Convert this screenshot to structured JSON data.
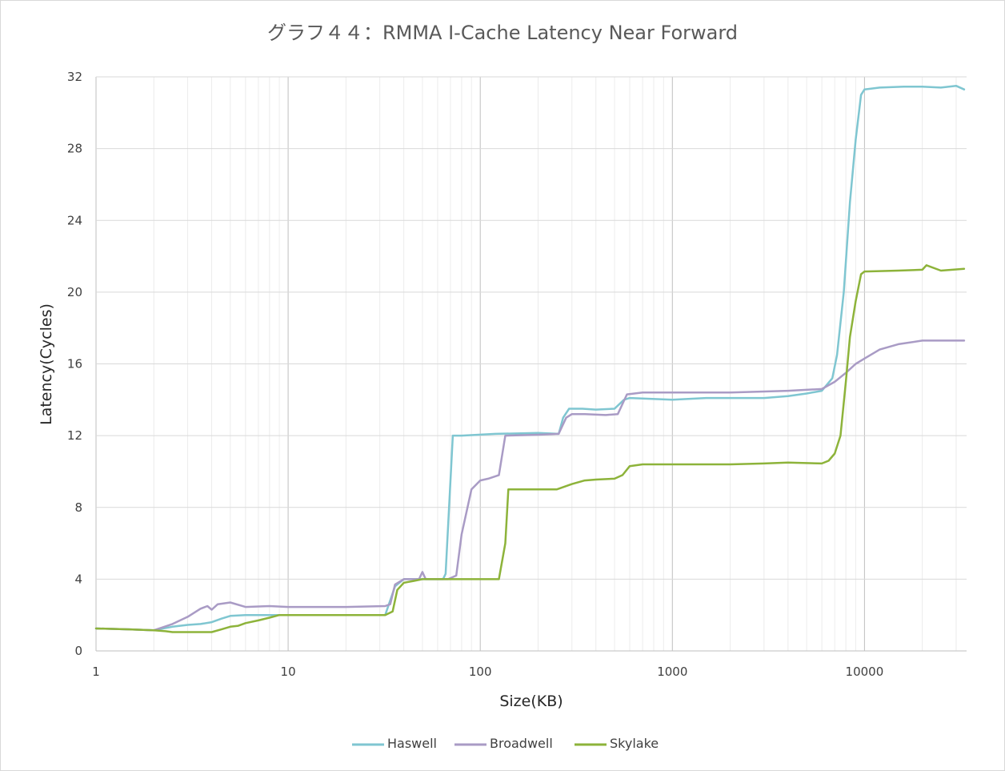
{
  "chart_data": {
    "type": "line",
    "title": "グラフ４４：RMMA I-Cache Latency Near Forward",
    "xlabel": "Size(KB)",
    "ylabel": "Latency(Cycles)",
    "x_scale": "log",
    "xlim": [
      1,
      34000
    ],
    "ylim": [
      0,
      32
    ],
    "x_ticks": [
      "1",
      "10",
      "100",
      "1000",
      "10000"
    ],
    "y_ticks": [
      "0",
      "4",
      "8",
      "12",
      "16",
      "20",
      "24",
      "28",
      "32"
    ],
    "grid": "major and minor",
    "legend_position": "bottom",
    "series": [
      {
        "name": "Haswell",
        "color": "#7FC6D1",
        "points": [
          [
            1,
            1.25
          ],
          [
            1.5,
            1.2
          ],
          [
            2,
            1.15
          ],
          [
            2.5,
            1.35
          ],
          [
            3,
            1.45
          ],
          [
            3.5,
            1.5
          ],
          [
            4,
            1.6
          ],
          [
            4.5,
            1.8
          ],
          [
            5,
            1.95
          ],
          [
            6,
            2.0
          ],
          [
            10,
            2.0
          ],
          [
            20,
            2.0
          ],
          [
            32,
            2.0
          ],
          [
            36,
            3.6
          ],
          [
            40,
            4.0
          ],
          [
            50,
            4.0
          ],
          [
            64,
            4.0
          ],
          [
            66,
            4.3
          ],
          [
            72,
            12.0
          ],
          [
            80,
            12.0
          ],
          [
            120,
            12.1
          ],
          [
            200,
            12.15
          ],
          [
            256,
            12.1
          ],
          [
            270,
            13.0
          ],
          [
            290,
            13.5
          ],
          [
            340,
            13.5
          ],
          [
            400,
            13.45
          ],
          [
            500,
            13.5
          ],
          [
            560,
            14.0
          ],
          [
            600,
            14.1
          ],
          [
            1000,
            14.0
          ],
          [
            1500,
            14.1
          ],
          [
            3000,
            14.1
          ],
          [
            4000,
            14.2
          ],
          [
            5000,
            14.35
          ],
          [
            6000,
            14.5
          ],
          [
            6800,
            15.2
          ],
          [
            7200,
            16.5
          ],
          [
            7800,
            20.0
          ],
          [
            8400,
            25.0
          ],
          [
            9000,
            28.5
          ],
          [
            9600,
            31.0
          ],
          [
            10000,
            31.3
          ],
          [
            12000,
            31.4
          ],
          [
            16000,
            31.45
          ],
          [
            20000,
            31.45
          ],
          [
            25000,
            31.4
          ],
          [
            30000,
            31.5
          ],
          [
            33000,
            31.3
          ]
        ]
      },
      {
        "name": "Broadwell",
        "color": "#A99BC5",
        "points": [
          [
            1,
            1.25
          ],
          [
            1.5,
            1.2
          ],
          [
            2,
            1.15
          ],
          [
            2.2,
            1.3
          ],
          [
            2.5,
            1.5
          ],
          [
            3,
            1.9
          ],
          [
            3.5,
            2.35
          ],
          [
            3.8,
            2.5
          ],
          [
            4,
            2.3
          ],
          [
            4.3,
            2.6
          ],
          [
            5,
            2.7
          ],
          [
            6,
            2.45
          ],
          [
            8,
            2.5
          ],
          [
            10,
            2.45
          ],
          [
            20,
            2.45
          ],
          [
            32,
            2.5
          ],
          [
            34,
            2.6
          ],
          [
            36,
            3.7
          ],
          [
            40,
            4.0
          ],
          [
            48,
            4.0
          ],
          [
            50,
            4.4
          ],
          [
            52,
            4.0
          ],
          [
            68,
            4.0
          ],
          [
            75,
            4.2
          ],
          [
            80,
            6.5
          ],
          [
            90,
            9.0
          ],
          [
            100,
            9.5
          ],
          [
            110,
            9.6
          ],
          [
            125,
            9.8
          ],
          [
            135,
            12.0
          ],
          [
            200,
            12.05
          ],
          [
            256,
            12.1
          ],
          [
            280,
            13.0
          ],
          [
            300,
            13.2
          ],
          [
            350,
            13.2
          ],
          [
            450,
            13.15
          ],
          [
            520,
            13.2
          ],
          [
            580,
            14.3
          ],
          [
            700,
            14.4
          ],
          [
            1000,
            14.4
          ],
          [
            2000,
            14.4
          ],
          [
            4000,
            14.5
          ],
          [
            6000,
            14.6
          ],
          [
            7000,
            15.0
          ],
          [
            8000,
            15.5
          ],
          [
            9000,
            16.0
          ],
          [
            10000,
            16.3
          ],
          [
            12000,
            16.8
          ],
          [
            15000,
            17.1
          ],
          [
            20000,
            17.3
          ],
          [
            25000,
            17.3
          ],
          [
            33000,
            17.3
          ]
        ]
      },
      {
        "name": "Skylake",
        "color": "#8DB33A",
        "points": [
          [
            1,
            1.25
          ],
          [
            1.5,
            1.2
          ],
          [
            2,
            1.15
          ],
          [
            2.3,
            1.1
          ],
          [
            2.5,
            1.05
          ],
          [
            3,
            1.05
          ],
          [
            4,
            1.05
          ],
          [
            4.5,
            1.2
          ],
          [
            5,
            1.35
          ],
          [
            5.5,
            1.4
          ],
          [
            6,
            1.55
          ],
          [
            7,
            1.7
          ],
          [
            8,
            1.85
          ],
          [
            9,
            2.0
          ],
          [
            10,
            2.0
          ],
          [
            20,
            2.0
          ],
          [
            32,
            2.0
          ],
          [
            35,
            2.2
          ],
          [
            37,
            3.4
          ],
          [
            40,
            3.8
          ],
          [
            45,
            3.9
          ],
          [
            50,
            4.0
          ],
          [
            64,
            4.0
          ],
          [
            100,
            4.0
          ],
          [
            125,
            4.0
          ],
          [
            135,
            6.0
          ],
          [
            140,
            9.0
          ],
          [
            200,
            9.0
          ],
          [
            250,
            9.0
          ],
          [
            300,
            9.3
          ],
          [
            350,
            9.5
          ],
          [
            400,
            9.55
          ],
          [
            500,
            9.6
          ],
          [
            550,
            9.8
          ],
          [
            600,
            10.3
          ],
          [
            700,
            10.4
          ],
          [
            1000,
            10.4
          ],
          [
            2000,
            10.4
          ],
          [
            3000,
            10.45
          ],
          [
            4000,
            10.5
          ],
          [
            6000,
            10.45
          ],
          [
            6500,
            10.6
          ],
          [
            7000,
            11.0
          ],
          [
            7500,
            12.0
          ],
          [
            8000,
            15.0
          ],
          [
            8400,
            17.5
          ],
          [
            9000,
            19.5
          ],
          [
            9600,
            21.0
          ],
          [
            10000,
            21.15
          ],
          [
            15000,
            21.2
          ],
          [
            20000,
            21.25
          ],
          [
            21000,
            21.5
          ],
          [
            25000,
            21.2
          ],
          [
            33000,
            21.3
          ]
        ]
      }
    ]
  }
}
